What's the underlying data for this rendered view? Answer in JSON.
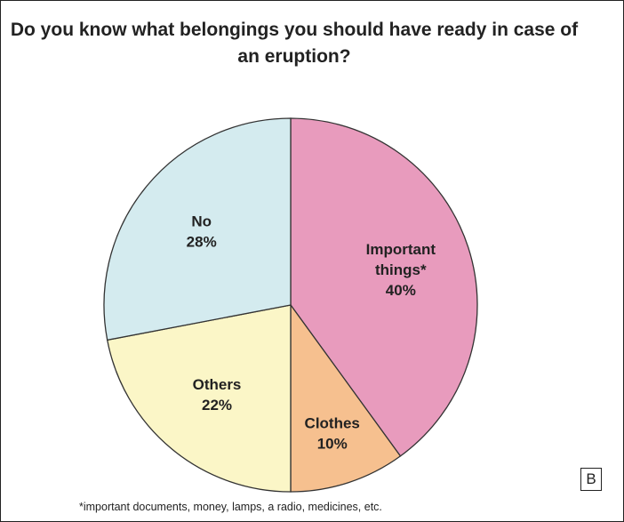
{
  "chart_data": {
    "type": "pie",
    "title": "Do you know what belongings you should have ready in case of an eruption?",
    "slices": [
      {
        "label_lines": [
          "Important",
          "things*"
        ],
        "value": 40,
        "value_label": "40%",
        "color": "#e89bbd"
      },
      {
        "label_lines": [
          "Clothes"
        ],
        "value": 10,
        "value_label": "10%",
        "color": "#f6c08f"
      },
      {
        "label_lines": [
          "Others"
        ],
        "value": 22,
        "value_label": "22%",
        "color": "#fbf6c7"
      },
      {
        "label_lines": [
          "No"
        ],
        "value": 28,
        "value_label": "28%",
        "color": "#d4ebef"
      }
    ],
    "footnote": "*important documents, money, lamps, a radio, medicines, etc.",
    "panel_letter": "B",
    "stroke_color": "#333333"
  }
}
